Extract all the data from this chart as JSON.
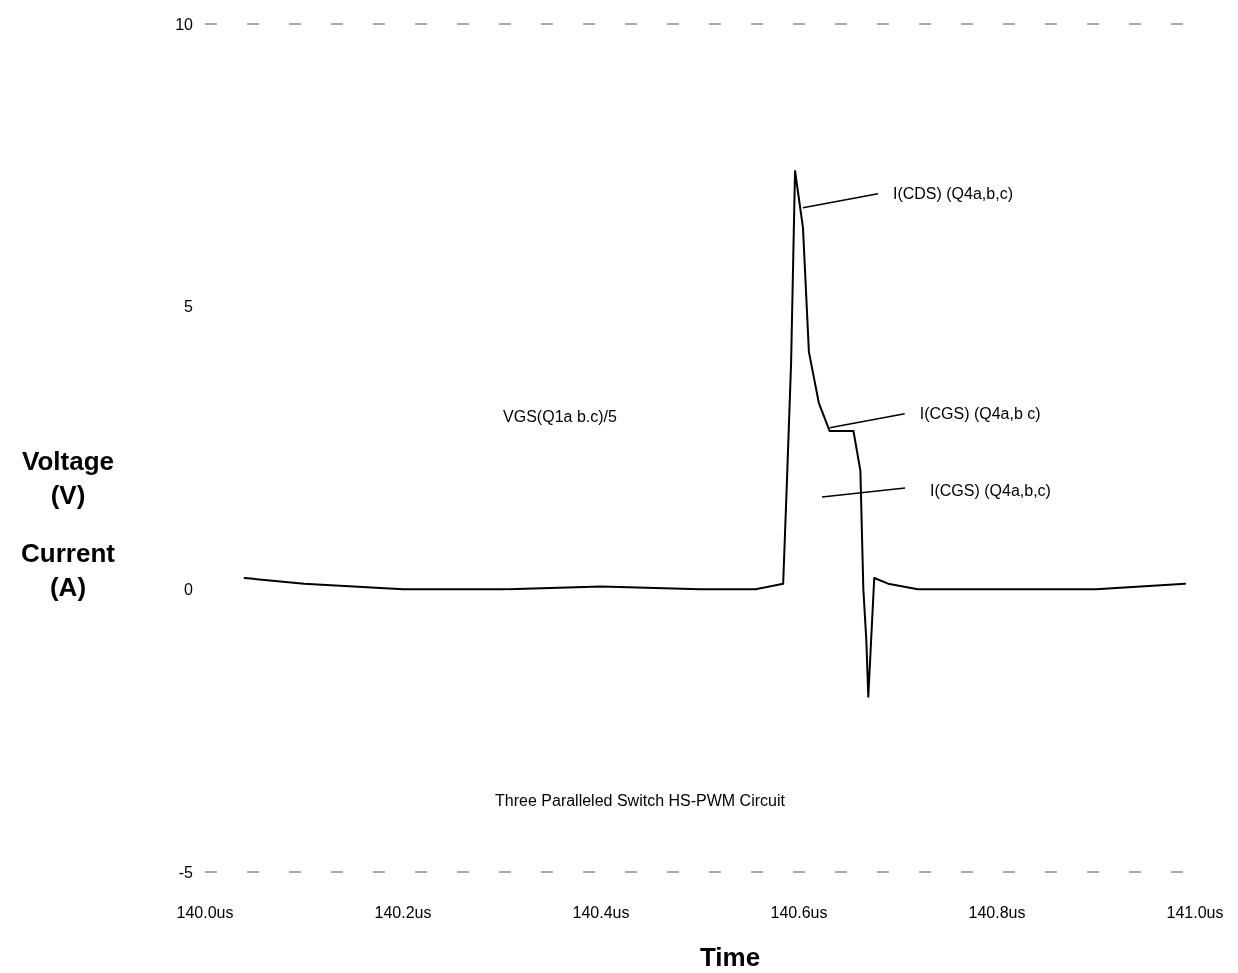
{
  "chart_data": {
    "type": "line",
    "title": "Three Paralleled Switch HS-PWM Circuit",
    "xlabel": "Time",
    "ylabel": "Voltage\n(V)\nCurrent\n(A)",
    "xlim": [
      140.0,
      141.0
    ],
    "xticks": [
      {
        "value": 140.0,
        "label": "140.0us"
      },
      {
        "value": 140.2,
        "label": "140.2us"
      },
      {
        "value": 140.4,
        "label": "140.4us"
      },
      {
        "value": 140.6,
        "label": "140.6us"
      },
      {
        "value": 140.8,
        "label": "140.8us"
      },
      {
        "value": 141.0,
        "label": "141.0us"
      }
    ],
    "ylim": [
      -5,
      10
    ],
    "yticks": [
      -5,
      0,
      5,
      10
    ],
    "grid": false,
    "line_style": "solid",
    "marker": "none",
    "series": [
      {
        "color": "#000000",
        "x": [
          140.04,
          140.1,
          140.15,
          140.2,
          140.3,
          140.4,
          140.5,
          140.556,
          140.584,
          140.588,
          140.592,
          140.596,
          140.604,
          140.61,
          140.62,
          140.631,
          140.655,
          140.662,
          140.665,
          140.668,
          140.67,
          140.676,
          140.69,
          140.72,
          140.8,
          140.9,
          140.99
        ],
        "values": [
          0.2,
          0.1,
          0.05,
          0,
          0,
          0.05,
          0,
          0,
          0.1,
          2.0,
          4.0,
          7.4,
          6.4,
          4.2,
          3.3,
          2.8,
          2.8,
          2.1,
          0,
          -0.9,
          -1.9,
          0.2,
          0.1,
          0,
          0,
          0,
          0.1
        ]
      }
    ],
    "annotations": [
      {
        "text": "I(CDS) (Q4a,b,c)",
        "x": 140.604,
        "y": 6.75
      },
      {
        "text": "I(CGS) (Q4a,b c)",
        "x": 140.631,
        "y": 2.86
      },
      "I(CGS) (Q4a,b,c)",
      "VGS(Q1a b.c)/5"
    ]
  }
}
